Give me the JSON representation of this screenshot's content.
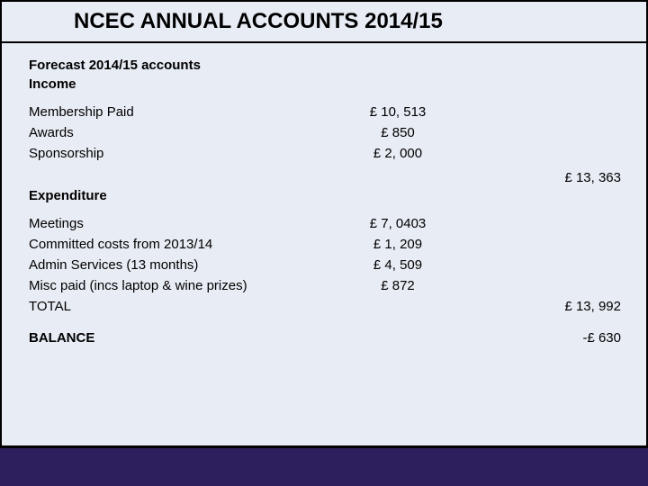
{
  "title": "NCEC ANNUAL ACCOUNTS 2014/15",
  "forecast_header_1": "Forecast 2014/15 accounts",
  "forecast_header_2": "Income",
  "income": [
    {
      "label": "Membership Paid",
      "amount": "£ 10, 513"
    },
    {
      "label": "Awards",
      "amount": "£ 850"
    },
    {
      "label": "Sponsorship",
      "amount": "£ 2, 000"
    }
  ],
  "income_total": "£ 13, 363",
  "expenditure_header": "Expenditure",
  "expenditure": [
    {
      "label": "Meetings",
      "amount": "£ 7, 0403"
    },
    {
      "label": "Committed costs from 2013/14",
      "amount": "£ 1, 209"
    },
    {
      "label": "Admin Services   (13 months)",
      "amount": "£ 4, 509"
    },
    {
      "label": "Misc paid (incs laptop & wine prizes)",
      "amount": "£ 872"
    }
  ],
  "total_label": "TOTAL",
  "total_amount": "£ 13, 992",
  "balance_label": "BALANCE",
  "balance_amount": "-£ 630",
  "colors": {
    "background": "#e8ecf4",
    "border": "#000000",
    "text": "#000000",
    "footer": "#2d1e5e"
  }
}
